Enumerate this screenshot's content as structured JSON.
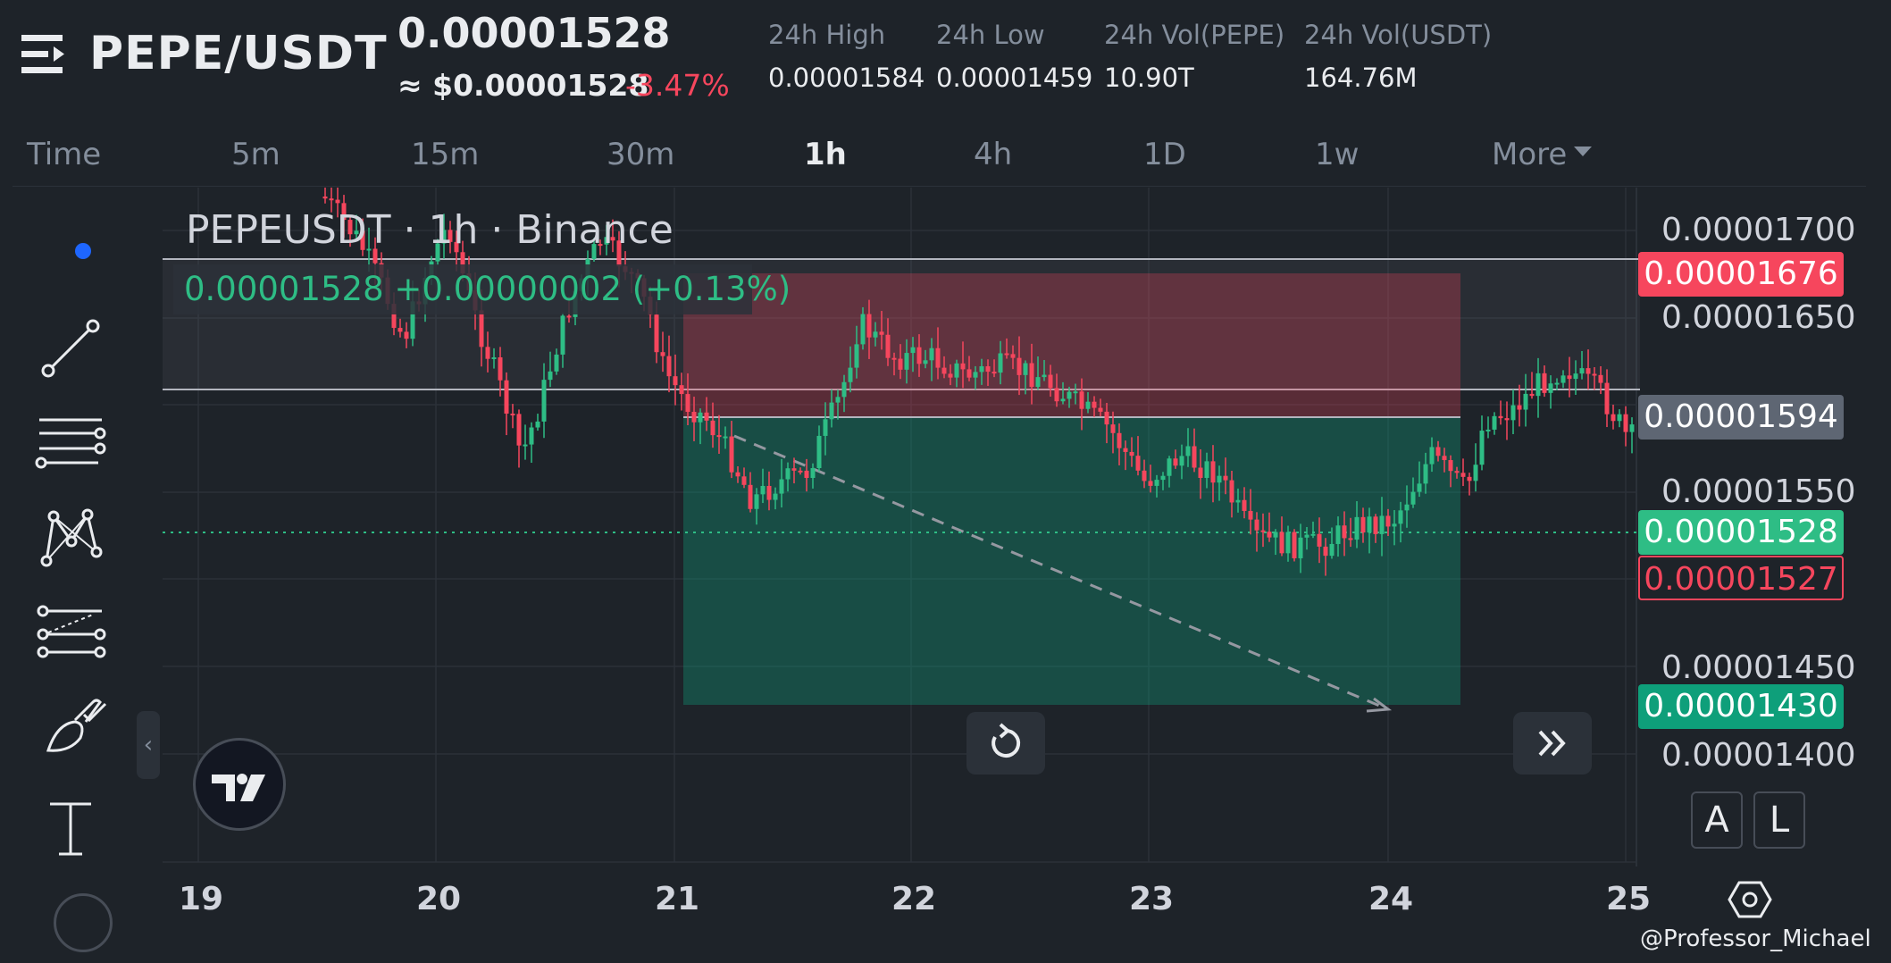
{
  "header": {
    "pair": "PEPE/USDT",
    "last_price": "0.00001528",
    "usd_price": "≈ $0.00001528",
    "change_pct": "-3.47%",
    "stats": [
      {
        "label": "24h High",
        "value": "0.00001584"
      },
      {
        "label": "24h Low",
        "value": "0.00001459"
      },
      {
        "label": "24h Vol(PEPE)",
        "value": "10.90T"
      },
      {
        "label": "24h Vol(USDT)",
        "value": "164.76M"
      }
    ]
  },
  "timeframes": {
    "items": [
      "Time",
      "5m",
      "15m",
      "30m",
      "1h",
      "4h",
      "1D",
      "1w",
      "More"
    ],
    "active": "1h"
  },
  "chart": {
    "symbol_legend": "PEPEUSDT · 1h · Binance",
    "legend_values": "0.00001528  +0.00000002 (+0.13%)",
    "colors": {
      "up": "#2ebd85",
      "down": "#f6465d",
      "stop_zone": "#f6465d",
      "target_zone": "#0e9f7a"
    }
  },
  "price_axis": {
    "labels": [
      "0.00001700",
      "0.00001650",
      "0.00001550",
      "0.00001450",
      "0.00001400"
    ],
    "tags": {
      "stop": "0.00001676",
      "entry": "0.00001594",
      "current": "0.00001528",
      "bid": "0.00001527",
      "target": "0.00001430"
    }
  },
  "time_axis": {
    "labels": [
      "19",
      "20",
      "21",
      "22",
      "23",
      "24",
      "25"
    ]
  },
  "buttons": {
    "auto_label": "A",
    "log_label": "L",
    "collapse_label": "‹"
  },
  "watermark": "@Professor_Michael"
}
